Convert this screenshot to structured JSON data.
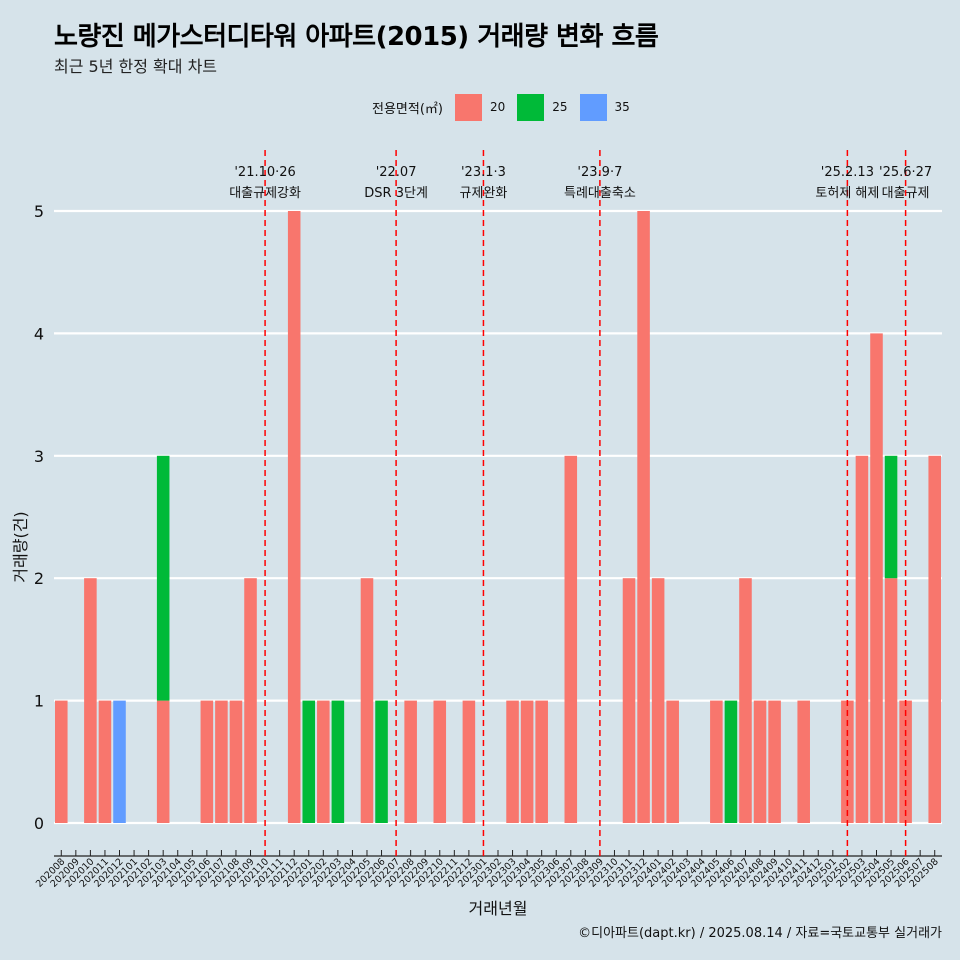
{
  "title": "노량진 메가스터디타워 아파트(2015) 거래량 변화 흐름",
  "subtitle": "최근 5년 한정 확대 차트",
  "legend_title": "전용면적(㎡)",
  "footer": "©디아파트(dapt.kr) / 2025.08.14 / 자료=국토교통부 실거래가",
  "chart_data": {
    "type": "bar",
    "stacked": true,
    "xlabel": "거래년월",
    "ylabel": "거래량(건)",
    "ylim": [
      0,
      5
    ],
    "yticks": [
      0,
      1,
      2,
      3,
      4,
      5
    ],
    "grid": true,
    "legend_position": "top",
    "categories": [
      "202008",
      "202009",
      "202010",
      "202011",
      "202012",
      "202101",
      "202102",
      "202103",
      "202104",
      "202105",
      "202106",
      "202107",
      "202108",
      "202109",
      "202110",
      "202111",
      "202112",
      "202201",
      "202202",
      "202203",
      "202204",
      "202205",
      "202206",
      "202207",
      "202208",
      "202209",
      "202210",
      "202211",
      "202212",
      "202301",
      "202302",
      "202303",
      "202304",
      "202305",
      "202306",
      "202307",
      "202308",
      "202309",
      "202310",
      "202311",
      "202312",
      "202401",
      "202402",
      "202403",
      "202404",
      "202405",
      "202406",
      "202407",
      "202408",
      "202409",
      "202410",
      "202411",
      "202412",
      "202501",
      "202502",
      "202503",
      "202504",
      "202505",
      "202506",
      "202507",
      "202508"
    ],
    "series": [
      {
        "name": "20",
        "color": "#f8766d",
        "values": [
          1,
          0,
          2,
          1,
          0,
          0,
          0,
          1,
          0,
          0,
          1,
          1,
          1,
          2,
          0,
          0,
          5,
          0,
          1,
          0,
          0,
          2,
          0,
          0,
          1,
          0,
          1,
          0,
          1,
          0,
          0,
          1,
          1,
          1,
          0,
          3,
          0,
          0,
          0,
          2,
          5,
          2,
          1,
          0,
          0,
          1,
          0,
          2,
          1,
          1,
          0,
          1,
          0,
          0,
          1,
          3,
          4,
          2,
          1,
          0,
          3
        ]
      },
      {
        "name": "25",
        "color": "#00ba38",
        "values": [
          0,
          0,
          0,
          0,
          0,
          0,
          0,
          2,
          0,
          0,
          0,
          0,
          0,
          0,
          0,
          0,
          0,
          1,
          0,
          1,
          0,
          0,
          1,
          0,
          0,
          0,
          0,
          0,
          0,
          0,
          0,
          0,
          0,
          0,
          0,
          0,
          0,
          0,
          0,
          0,
          0,
          0,
          0,
          0,
          0,
          0,
          1,
          0,
          0,
          0,
          0,
          0,
          0,
          0,
          0,
          0,
          0,
          1,
          0,
          0,
          0
        ]
      },
      {
        "name": "35",
        "color": "#619cff",
        "values": [
          0,
          0,
          0,
          0,
          1,
          0,
          0,
          0,
          0,
          0,
          0,
          0,
          0,
          0,
          0,
          0,
          0,
          0,
          0,
          0,
          0,
          0,
          0,
          0,
          0,
          0,
          0,
          0,
          0,
          0,
          0,
          0,
          0,
          0,
          0,
          0,
          0,
          0,
          0,
          0,
          0,
          0,
          0,
          0,
          0,
          0,
          0,
          0,
          0,
          0,
          0,
          0,
          0,
          0,
          0,
          0,
          0,
          0,
          0,
          0,
          0
        ]
      }
    ],
    "annotations": [
      {
        "date": "'21.10·26",
        "label": "대출규제강화",
        "x": "202110"
      },
      {
        "date": "'22.07",
        "label": "DSR 3단계",
        "x": "202207"
      },
      {
        "date": "'23.1·3",
        "label": "규제완화",
        "x": "202301"
      },
      {
        "date": "'23.9·7",
        "label": "특례대출축소",
        "x": "202309"
      },
      {
        "date": "'25.2.13",
        "label": "토허제 해제",
        "x": "202502"
      },
      {
        "date": "'25.6·27",
        "label": "대출규제",
        "x": "202506"
      }
    ],
    "annotation_color": "#ff0000"
  }
}
